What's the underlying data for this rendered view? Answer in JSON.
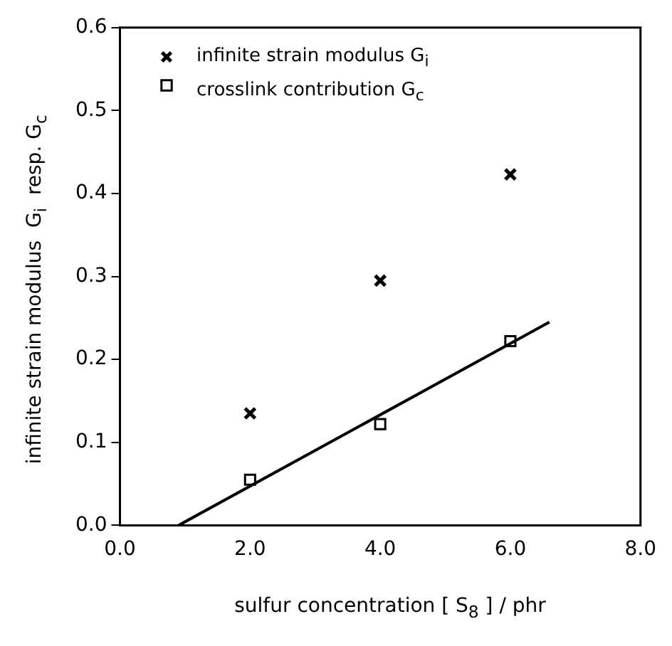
{
  "chart_data": {
    "type": "scatter",
    "xlabel": "sulfur concentration [ S$_{8}$ ] / phr",
    "ylabel": "infinite strain modulus  G$_{i}$  resp. G$_{c}$",
    "xlim": [
      0,
      8
    ],
    "xticks": [
      {
        "value": 0,
        "label": "0.0"
      },
      {
        "value": 2,
        "label": "2.0"
      },
      {
        "value": 4,
        "label": "4.0"
      },
      {
        "value": 6,
        "label": "6.0"
      },
      {
        "value": 8,
        "label": "8.0"
      }
    ],
    "ylim": [
      0,
      0.6
    ],
    "yticks": [
      {
        "value": 0,
        "label": "0.0"
      },
      {
        "value": 0.1,
        "label": "0.1"
      },
      {
        "value": 0.2,
        "label": "0.2"
      },
      {
        "value": 0.3,
        "label": "0.3"
      },
      {
        "value": 0.4,
        "label": "0.4"
      },
      {
        "value": 0.5,
        "label": "0.5"
      },
      {
        "value": 0.6,
        "label": "0.6"
      }
    ],
    "grid": false,
    "legend": "top left",
    "series": [
      {
        "name": "infinite strain modulus G$_{i}$",
        "color": "#000000",
        "marker": "cross",
        "x": [
          2,
          4,
          6
        ],
        "values": [
          0.135,
          0.295,
          0.423
        ]
      },
      {
        "name": "crosslink contribution G$_{c}$",
        "color": "#000000",
        "marker": "square",
        "x": [
          2,
          4,
          6
        ],
        "values": [
          0.055,
          0.122,
          0.222
        ]
      },
      {
        "type": "line",
        "color": "#000000",
        "marker": "none",
        "x": [
          0.9,
          6.6
        ],
        "values": [
          0,
          0.245
        ]
      }
    ]
  }
}
